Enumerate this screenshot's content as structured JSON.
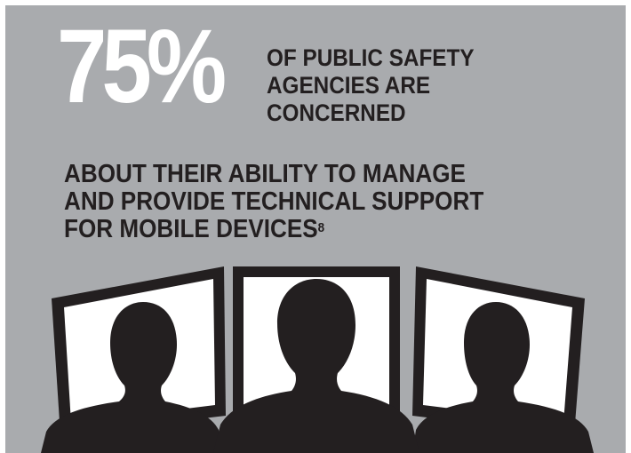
{
  "headline": {
    "stat": "75%",
    "lines": [
      "OF PUBLIC SAFETY",
      "AGENCIES ARE",
      "CONCERNED"
    ]
  },
  "body": {
    "lines": [
      "ABOUT THEIR ABILITY TO MANAGE",
      "AND PROVIDE TECHNICAL SUPPORT",
      "FOR MOBILE DEVICES"
    ],
    "footnote": "8"
  },
  "colors": {
    "background": "#a9abae",
    "stat": "#ffffff",
    "text": "#231f20",
    "silhouette": "#231f20",
    "screen": "#ffffff"
  }
}
